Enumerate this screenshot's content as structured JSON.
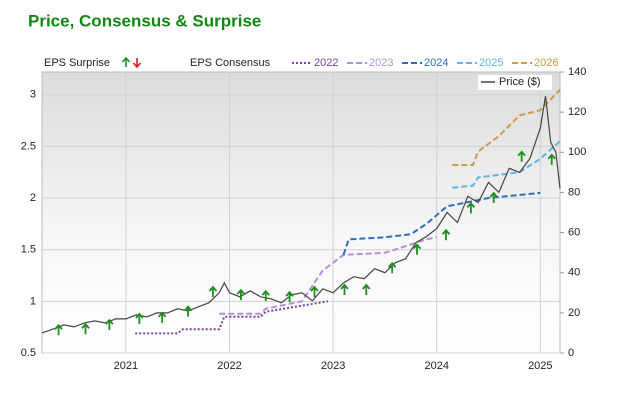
{
  "chart_data": {
    "type": "line",
    "title": "Price, Consensus & Surprise",
    "surprise_label": "EPS Surprise",
    "consensus_label": "EPS Consensus",
    "xlim": [
      2020.19,
      2025.19
    ],
    "xticks": [
      2021,
      2022,
      2023,
      2024,
      2025
    ],
    "ylim": [
      0.5,
      3.22
    ],
    "yticks": [
      0.5,
      1,
      1.5,
      2,
      2.5,
      3
    ],
    "y2lim": [
      0,
      140
    ],
    "y2ticks": [
      0,
      20,
      40,
      60,
      80,
      100,
      120,
      140
    ],
    "grid": true,
    "series": [
      {
        "name": "2022",
        "color": "#7b3fa0",
        "dash": "dotted",
        "x": [
          2021.09,
          2021.5,
          2021.55,
          2021.9,
          2021.95,
          2022.3,
          2022.35,
          2022.95
        ],
        "values": [
          0.69,
          0.69,
          0.73,
          0.73,
          0.85,
          0.85,
          0.9,
          1.0
        ]
      },
      {
        "name": "2023",
        "color": "#b88fd6",
        "dash": "dashed",
        "x": [
          2021.9,
          2022.3,
          2022.35,
          2022.7,
          2022.9,
          2023.1,
          2023.5,
          2023.9,
          2024.0
        ],
        "values": [
          0.88,
          0.88,
          0.93,
          1.0,
          1.3,
          1.45,
          1.47,
          1.6,
          1.62
        ]
      },
      {
        "name": "2024",
        "color": "#2f6db5",
        "dash": "dashed",
        "x": [
          2023.1,
          2023.15,
          2023.5,
          2023.75,
          2023.9,
          2024.1,
          2024.5,
          2024.8,
          2025.0
        ],
        "values": [
          1.45,
          1.6,
          1.62,
          1.65,
          1.75,
          1.92,
          2.0,
          2.03,
          2.05
        ]
      },
      {
        "name": "2025",
        "color": "#5fb3e0",
        "dash": "dashed",
        "x": [
          2024.15,
          2024.35,
          2024.4,
          2024.8,
          2025.0,
          2025.19
        ],
        "values": [
          2.1,
          2.12,
          2.2,
          2.25,
          2.38,
          2.55
        ]
      },
      {
        "name": "2026",
        "color": "#c89a4a",
        "dash": "dashed",
        "x": [
          2024.15,
          2024.35,
          2024.4,
          2024.6,
          2024.8,
          2025.0,
          2025.19
        ],
        "values": [
          2.32,
          2.32,
          2.45,
          2.6,
          2.8,
          2.85,
          3.05
        ]
      },
      {
        "name": "Price ($)",
        "color": "#444444",
        "dash": "solid",
        "axis": "y2",
        "x": [
          2020.19,
          2020.3,
          2020.4,
          2020.5,
          2020.6,
          2020.7,
          2020.8,
          2020.9,
          2021.0,
          2021.1,
          2021.2,
          2021.3,
          2021.4,
          2021.5,
          2021.6,
          2021.7,
          2021.8,
          2021.9,
          2021.95,
          2022.0,
          2022.1,
          2022.2,
          2022.3,
          2022.4,
          2022.5,
          2022.6,
          2022.7,
          2022.8,
          2022.9,
          2023.0,
          2023.1,
          2023.2,
          2023.3,
          2023.4,
          2023.5,
          2023.6,
          2023.7,
          2023.8,
          2023.9,
          2024.0,
          2024.1,
          2024.2,
          2024.3,
          2024.4,
          2024.5,
          2024.6,
          2024.7,
          2024.8,
          2024.9,
          2025.0,
          2025.05,
          2025.1,
          2025.15,
          2025.19
        ],
        "values": [
          10,
          12,
          14,
          13,
          15,
          16,
          15,
          17,
          17,
          19,
          18,
          20,
          20,
          22,
          21,
          23,
          25,
          30,
          35,
          30,
          28,
          31,
          28,
          27,
          25,
          29,
          30,
          26,
          32,
          30,
          35,
          38,
          37,
          42,
          40,
          45,
          47,
          55,
          58,
          62,
          70,
          65,
          78,
          75,
          85,
          80,
          92,
          90,
          97,
          112,
          128,
          105,
          100,
          82
        ]
      }
    ],
    "surprises": {
      "color": "#1e8c1e",
      "x": [
        2020.35,
        2020.61,
        2020.84,
        2021.13,
        2021.35,
        2021.6,
        2021.84,
        2022.11,
        2022.35,
        2022.58,
        2022.82,
        2023.11,
        2023.32,
        2023.57,
        2023.81,
        2024.09,
        2024.33,
        2024.55,
        2024.82,
        2025.11
      ],
      "values": [
        0.72,
        0.73,
        0.77,
        0.83,
        0.84,
        0.9,
        1.09,
        1.06,
        1.05,
        1.04,
        1.09,
        1.11,
        1.11,
        1.32,
        1.5,
        1.64,
        1.9,
        2.0,
        2.4,
        2.37
      ]
    }
  }
}
